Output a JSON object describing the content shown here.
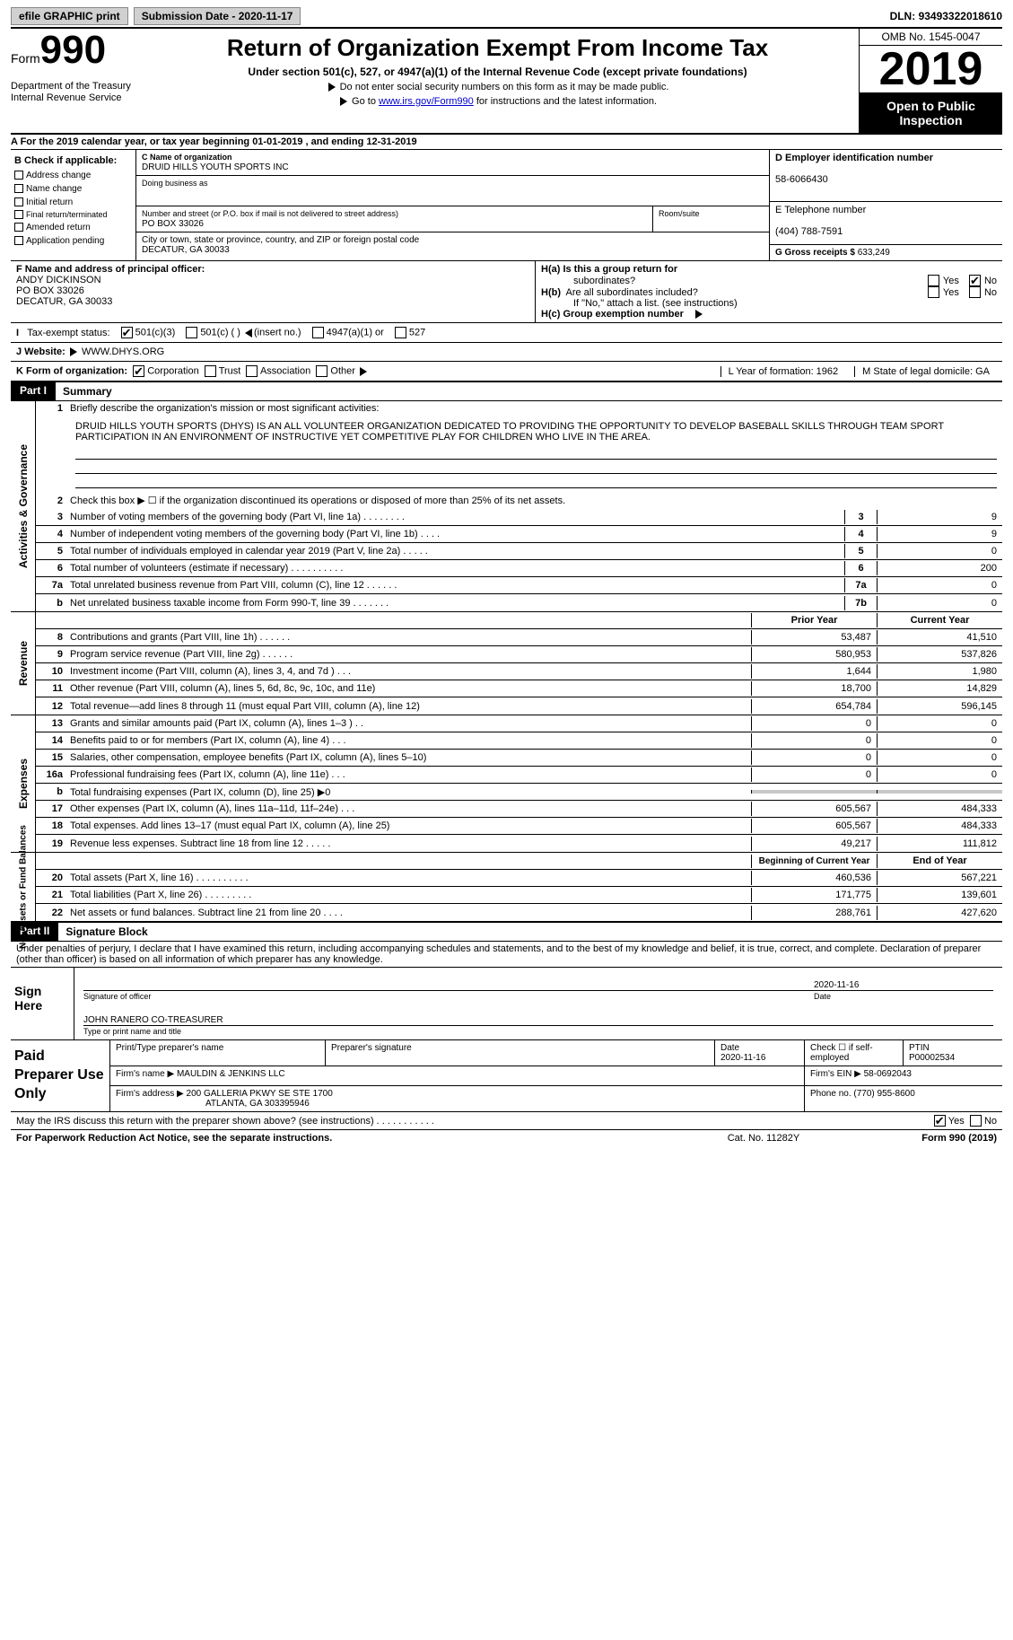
{
  "topbar": {
    "efile": "efile GRAPHIC print",
    "submission_label": "Submission Date - ",
    "submission_date": "2020-11-17",
    "dln_label": "DLN: ",
    "dln": "93493322018610"
  },
  "header": {
    "form_word": "Form",
    "form_num": "990",
    "dept1": "Department of the Treasury",
    "dept2": "Internal Revenue Service",
    "title": "Return of Organization Exempt From Income Tax",
    "sub": "Under section 501(c), 527, or 4947(a)(1) of the Internal Revenue Code (except private foundations)",
    "note1": "Do not enter social security numbers on this form as it may be made public.",
    "note2_pre": "Go to ",
    "note2_link": "www.irs.gov/Form990",
    "note2_post": " for instructions and the latest information.",
    "omb": "OMB No. 1545-0047",
    "year": "2019",
    "open1": "Open to Public",
    "open2": "Inspection"
  },
  "rowA": "A For the 2019 calendar year, or tax year beginning 01-01-2019    , and ending 12-31-2019",
  "colB": {
    "hd": "B Check if applicable:",
    "items": [
      "Address change",
      "Name change",
      "Initial return",
      "Final return/terminated",
      "Amended return",
      "Application pending"
    ]
  },
  "org": {
    "c_lbl": "C Name of organization",
    "c_val": "DRUID HILLS YOUTH SPORTS INC",
    "dba_lbl": "Doing business as",
    "addr_lbl": "Number and street (or P.O. box if mail is not delivered to street address)",
    "room_lbl": "Room/suite",
    "addr_val": "PO BOX 33026",
    "city_lbl": "City or town, state or province, country, and ZIP or foreign postal code",
    "city_val": "DECATUR, GA  30033"
  },
  "right": {
    "d_lbl": "D Employer identification number",
    "d_val": "58-6066430",
    "e_lbl": "E Telephone number",
    "e_val": "(404) 788-7591",
    "g_lbl": "G Gross receipts $ ",
    "g_val": "633,249"
  },
  "F": {
    "lbl": "F  Name and address of principal officer:",
    "name": "ANDY DICKINSON",
    "addr1": "PO BOX 33026",
    "addr2": "DECATUR, GA   30033"
  },
  "H": {
    "ha": "H(a)  Is this a group return for",
    "ha2": "subordinates?",
    "hb": "H(b)  Are all subordinates included?",
    "hb_note": "If \"No,\" attach a list. (see instructions)",
    "hc": "H(c)  Group exemption number",
    "yes": "Yes",
    "no": "No"
  },
  "I": {
    "lbl": "Tax-exempt status:",
    "o1": "501(c)(3)",
    "o2": "501(c) (   )",
    "o2b": "(insert no.)",
    "o3": "4947(a)(1) or",
    "o4": "527"
  },
  "J": {
    "lbl": "J   Website:",
    "val": "WWW.DHYS.ORG"
  },
  "K": {
    "lbl": "K Form of organization:",
    "o1": "Corporation",
    "o2": "Trust",
    "o3": "Association",
    "o4": "Other",
    "L": "L Year of formation: 1962",
    "M": "M State of legal domicile: GA"
  },
  "part1": {
    "tag": "Part I",
    "title": "Summary"
  },
  "vlabels": [
    "Activities & Governance",
    "Revenue",
    "Expenses",
    "Net Assets or Fund Balances"
  ],
  "mission": {
    "lbl": "Briefly describe the organization's mission or most significant activities:",
    "text": "DRUID HILLS YOUTH SPORTS (DHYS) IS AN ALL VOLUNTEER ORGANIZATION DEDICATED TO PROVIDING THE OPPORTUNITY TO DEVELOP BASEBALL SKILLS THROUGH TEAM SPORT PARTICIPATION IN AN ENVIRONMENT OF INSTRUCTIVE YET COMPETITIVE PLAY FOR CHILDREN WHO LIVE IN THE AREA."
  },
  "line2": "Check this box ▶ ☐  if the organization discontinued its operations or disposed of more than 25% of its net assets.",
  "govlines": [
    {
      "n": "3",
      "t": "Number of voting members of the governing body (Part VI, line 1a)   .    .    .    .    .    .    .    .",
      "b": "3",
      "v": "9"
    },
    {
      "n": "4",
      "t": "Number of independent voting members of the governing body (Part VI, line 1b)   .    .    .    .",
      "b": "4",
      "v": "9"
    },
    {
      "n": "5",
      "t": "Total number of individuals employed in calendar year 2019 (Part V, line 2a)   .    .    .    .    .",
      "b": "5",
      "v": "0"
    },
    {
      "n": "6",
      "t": "Total number of volunteers (estimate if necessary)   .    .    .    .    .    .    .    .    .    .",
      "b": "6",
      "v": "200"
    },
    {
      "n": "7a",
      "t": "Total unrelated business revenue from Part VIII, column (C), line 12   .    .    .    .    .    .",
      "b": "7a",
      "v": "0"
    },
    {
      "n": "b",
      "t": "Net unrelated business taxable income from Form 990-T, line 39   .    .    .    .    .    .    .",
      "b": "7b",
      "v": "0"
    }
  ],
  "colhd": {
    "prior": "Prior Year",
    "current": "Current Year",
    "begin": "Beginning of Current Year",
    "end": "End of Year"
  },
  "revlines": [
    {
      "n": "8",
      "t": "Contributions and grants (Part VIII, line 1h)    .    .    .    .    .    .",
      "p": "53,487",
      "c": "41,510"
    },
    {
      "n": "9",
      "t": "Program service revenue (Part VIII, line 2g)    .    .    .    .    .    .",
      "p": "580,953",
      "c": "537,826"
    },
    {
      "n": "10",
      "t": "Investment income (Part VIII, column (A), lines 3, 4, and 7d )    .    .    .",
      "p": "1,644",
      "c": "1,980"
    },
    {
      "n": "11",
      "t": "Other revenue (Part VIII, column (A), lines 5, 6d, 8c, 9c, 10c, and 11e)",
      "p": "18,700",
      "c": "14,829"
    },
    {
      "n": "12",
      "t": "Total revenue—add lines 8 through 11 (must equal Part VIII, column (A), line 12)",
      "p": "654,784",
      "c": "596,145"
    }
  ],
  "explines": [
    {
      "n": "13",
      "t": "Grants and similar amounts paid (Part IX, column (A), lines 1–3 )  .    .",
      "p": "0",
      "c": "0"
    },
    {
      "n": "14",
      "t": "Benefits paid to or for members (Part IX, column (A), line 4)  .    .    .",
      "p": "0",
      "c": "0"
    },
    {
      "n": "15",
      "t": "Salaries, other compensation, employee benefits (Part IX, column (A), lines 5–10)",
      "p": "0",
      "c": "0"
    },
    {
      "n": "16a",
      "t": "Professional fundraising fees (Part IX, column (A), line 11e)   .    .    .",
      "p": "0",
      "c": "0"
    },
    {
      "n": "b",
      "t": "Total fundraising expenses (Part IX, column (D), line 25) ▶0",
      "p": "",
      "c": "",
      "shade": true
    },
    {
      "n": "17",
      "t": "Other expenses (Part IX, column (A), lines 11a–11d, 11f–24e)   .    .    .",
      "p": "605,567",
      "c": "484,333"
    },
    {
      "n": "18",
      "t": "Total expenses. Add lines 13–17 (must equal Part IX, column (A), line 25)",
      "p": "605,567",
      "c": "484,333"
    },
    {
      "n": "19",
      "t": "Revenue less expenses. Subtract line 18 from line 12   .    .    .    .    .",
      "p": "49,217",
      "c": "111,812"
    }
  ],
  "netlines": [
    {
      "n": "20",
      "t": "Total assets (Part X, line 16)   .    .    .    .    .    .    .    .    .    .",
      "p": "460,536",
      "c": "567,221"
    },
    {
      "n": "21",
      "t": "Total liabilities (Part X, line 26)   .    .    .    .    .    .    .    .    .",
      "p": "171,775",
      "c": "139,601"
    },
    {
      "n": "22",
      "t": "Net assets or fund balances. Subtract line 21 from line 20   .    .    .    .",
      "p": "288,761",
      "c": "427,620"
    }
  ],
  "part2": {
    "tag": "Part II",
    "title": "Signature Block"
  },
  "perjury": "Under penalties of perjury, I declare that I have examined this return, including accompanying schedules and statements, and to the best of my knowledge and belief, it is true, correct, and complete. Declaration of preparer (other than officer) is based on all information of which preparer has any knowledge.",
  "sign": {
    "hd": "Sign Here",
    "date": "2020-11-16",
    "l1a": "Signature of officer",
    "l1b": "Date",
    "name": "JOHN RANERO  CO-TREASURER",
    "l2": "Type or print name and title"
  },
  "prep": {
    "hd": "Paid Preparer Use Only",
    "r1": {
      "a": "Print/Type preparer's name",
      "b": "Preparer's signature",
      "c": "Date",
      "cd": "2020-11-16",
      "d": "Check ☐  if self-employed",
      "e": "PTIN",
      "ev": "P00002534"
    },
    "r2": {
      "a": "Firm's name     ▶",
      "av": "MAULDIN & JENKINS LLC",
      "b": "Firm's EIN ▶",
      "bv": "58-0692043"
    },
    "r3": {
      "a": "Firm's address ▶",
      "av1": "200 GALLERIA PKWY SE STE 1700",
      "av2": "ATLANTA, GA   303395946",
      "b": "Phone no.",
      "bv": "(770) 955-8600"
    }
  },
  "irs": {
    "q": "May the IRS discuss this return with the preparer shown above? (see instructions)   .    .    .    .    .    .    .    .    .    .    .",
    "yes": "Yes",
    "no": "No"
  },
  "foot": {
    "a": "For Paperwork Reduction Act Notice, see the separate instructions.",
    "b": "Cat. No. 11282Y",
    "c": "Form 990 (2019)"
  }
}
